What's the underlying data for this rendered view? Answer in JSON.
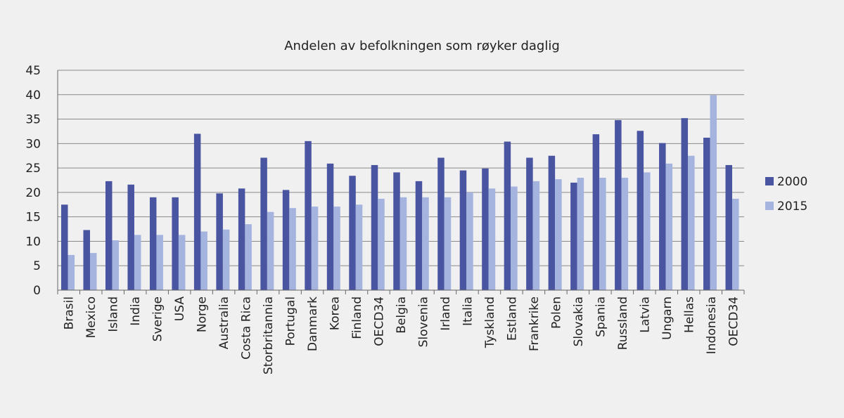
{
  "chart_data": {
    "type": "bar",
    "title": "Andelen av befolkningen som røyker daglig",
    "categories": [
      "Brasil",
      "Mexico",
      "Island",
      "India",
      "Sverige",
      "USA",
      "Norge",
      "Australia",
      "Costa Rica",
      "Storbritannia",
      "Portugal",
      "Danmark",
      "Korea",
      "Finland",
      "OECD34",
      "Belgia",
      "Slovenia",
      "Irland",
      "Italia",
      "Tyskland",
      "Estland",
      "Frankrike",
      "Polen",
      "Slovakia",
      "Spania",
      "Russland",
      "Latvia",
      "Ungarn",
      "Hellas",
      "Indonesia",
      "OECD34"
    ],
    "series": [
      {
        "name": "2000",
        "color": "#4a55a2",
        "values": [
          17.5,
          12.3,
          22.3,
          21.6,
          19.0,
          19.0,
          32.0,
          19.8,
          20.8,
          27.1,
          20.5,
          30.5,
          25.9,
          23.4,
          25.6,
          24.1,
          22.3,
          27.1,
          24.5,
          24.9,
          30.4,
          27.1,
          27.5,
          22.0,
          31.9,
          34.8,
          32.6,
          30.1,
          35.2,
          31.2,
          25.6
        ]
      },
      {
        "name": "2015",
        "color": "#a5b4de",
        "values": [
          7.2,
          7.6,
          10.2,
          11.3,
          11.3,
          11.3,
          12.0,
          12.4,
          13.5,
          16.0,
          16.8,
          17.1,
          17.1,
          17.5,
          18.7,
          19.0,
          19.0,
          19.0,
          20.0,
          20.8,
          21.2,
          22.3,
          22.7,
          23.0,
          23.0,
          23.0,
          24.1,
          25.9,
          27.5,
          39.9,
          18.7
        ]
      }
    ],
    "ylim": [
      0,
      45
    ],
    "yticks": [
      0,
      5,
      10,
      15,
      20,
      25,
      30,
      35,
      40,
      45
    ],
    "grid": true,
    "legend": "right"
  }
}
